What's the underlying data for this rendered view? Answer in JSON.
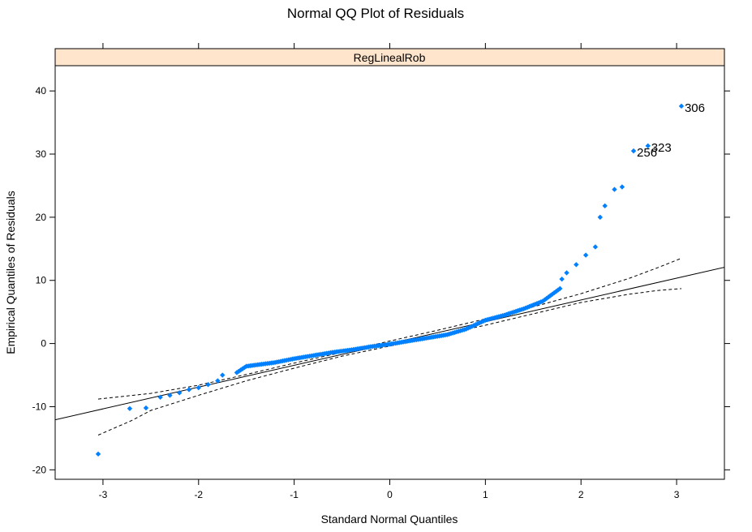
{
  "chart_data": {
    "type": "scatter",
    "title": "Normal QQ Plot of Residuals",
    "xlabel": "Standard Normal Quantiles",
    "ylabel": "Empirical Quantiles of Residuals",
    "panel_label": "RegLinealRob",
    "xlim": [
      -3.5,
      3.5
    ],
    "ylim": [
      -21.5,
      44
    ],
    "x_ticks": [
      -3,
      -2,
      -1,
      0,
      1,
      2,
      3
    ],
    "y_ticks": [
      -20,
      -10,
      0,
      10,
      20,
      30,
      40
    ],
    "grid": false,
    "point_color": "#0080ff",
    "reference_line": {
      "slope": 3.45,
      "intercept": 0.0
    },
    "envelope_upper": [
      [
        -3.05,
        -8.8
      ],
      [
        -2.5,
        -7.9
      ],
      [
        -2.0,
        -6.6
      ],
      [
        -1.5,
        -4.9
      ],
      [
        -1.0,
        -3.1
      ],
      [
        -0.5,
        -1.4
      ],
      [
        0.0,
        0.4
      ],
      [
        0.5,
        2.1
      ],
      [
        1.0,
        3.9
      ],
      [
        1.5,
        5.8
      ],
      [
        2.0,
        7.9
      ],
      [
        2.5,
        10.3
      ],
      [
        2.8,
        12.0
      ],
      [
        3.05,
        13.5
      ]
    ],
    "envelope_lower": [
      [
        -3.05,
        -14.5
      ],
      [
        -2.7,
        -12.2
      ],
      [
        -2.5,
        -10.6
      ],
      [
        -2.0,
        -8.2
      ],
      [
        -1.5,
        -5.9
      ],
      [
        -1.0,
        -3.9
      ],
      [
        -0.5,
        -2.0
      ],
      [
        0.0,
        -0.4
      ],
      [
        0.5,
        1.3
      ],
      [
        1.0,
        2.9
      ],
      [
        1.5,
        4.7
      ],
      [
        2.0,
        6.5
      ],
      [
        2.5,
        7.8
      ],
      [
        2.8,
        8.4
      ],
      [
        3.05,
        8.7
      ]
    ],
    "key_points": [
      [
        -3.05,
        -17.5
      ],
      [
        -2.72,
        -10.3
      ],
      [
        -2.55,
        -10.2
      ],
      [
        -2.4,
        -8.5
      ],
      [
        -2.3,
        -8.2
      ],
      [
        -2.2,
        -7.8
      ],
      [
        -2.1,
        -7.3
      ],
      [
        -2.0,
        -7.0
      ],
      [
        -1.9,
        -6.5
      ],
      [
        -1.8,
        -5.9
      ],
      [
        -1.75,
        -5.0
      ],
      [
        -1.6,
        -4.6
      ],
      [
        -1.5,
        -3.6
      ],
      [
        -1.2,
        -3.0
      ],
      [
        -1.0,
        -2.4
      ],
      [
        -0.8,
        -1.9
      ],
      [
        -0.6,
        -1.4
      ],
      [
        -0.4,
        -1.0
      ],
      [
        -0.2,
        -0.5
      ],
      [
        0.0,
        -0.1
      ],
      [
        0.2,
        0.4
      ],
      [
        0.4,
        0.9
      ],
      [
        0.6,
        1.4
      ],
      [
        0.8,
        2.3
      ],
      [
        0.9,
        3.0
      ],
      [
        1.0,
        3.7
      ],
      [
        1.2,
        4.5
      ],
      [
        1.4,
        5.5
      ],
      [
        1.6,
        6.7
      ],
      [
        1.78,
        8.7
      ],
      [
        1.8,
        10.2
      ],
      [
        1.85,
        11.2
      ],
      [
        1.95,
        12.5
      ],
      [
        2.05,
        14.0
      ],
      [
        2.15,
        15.3
      ],
      [
        2.2,
        20.0
      ],
      [
        2.25,
        21.8
      ],
      [
        2.35,
        24.4
      ],
      [
        2.43,
        24.8
      ],
      [
        2.55,
        30.5
      ],
      [
        2.7,
        31.3
      ],
      [
        3.05,
        37.6
      ]
    ],
    "point_labels": [
      {
        "text": "306",
        "x": 3.05,
        "y": 37.6
      },
      {
        "text": "323",
        "x": 2.7,
        "y": 31.3
      },
      {
        "text": "256",
        "x": 2.55,
        "y": 30.5
      }
    ]
  }
}
